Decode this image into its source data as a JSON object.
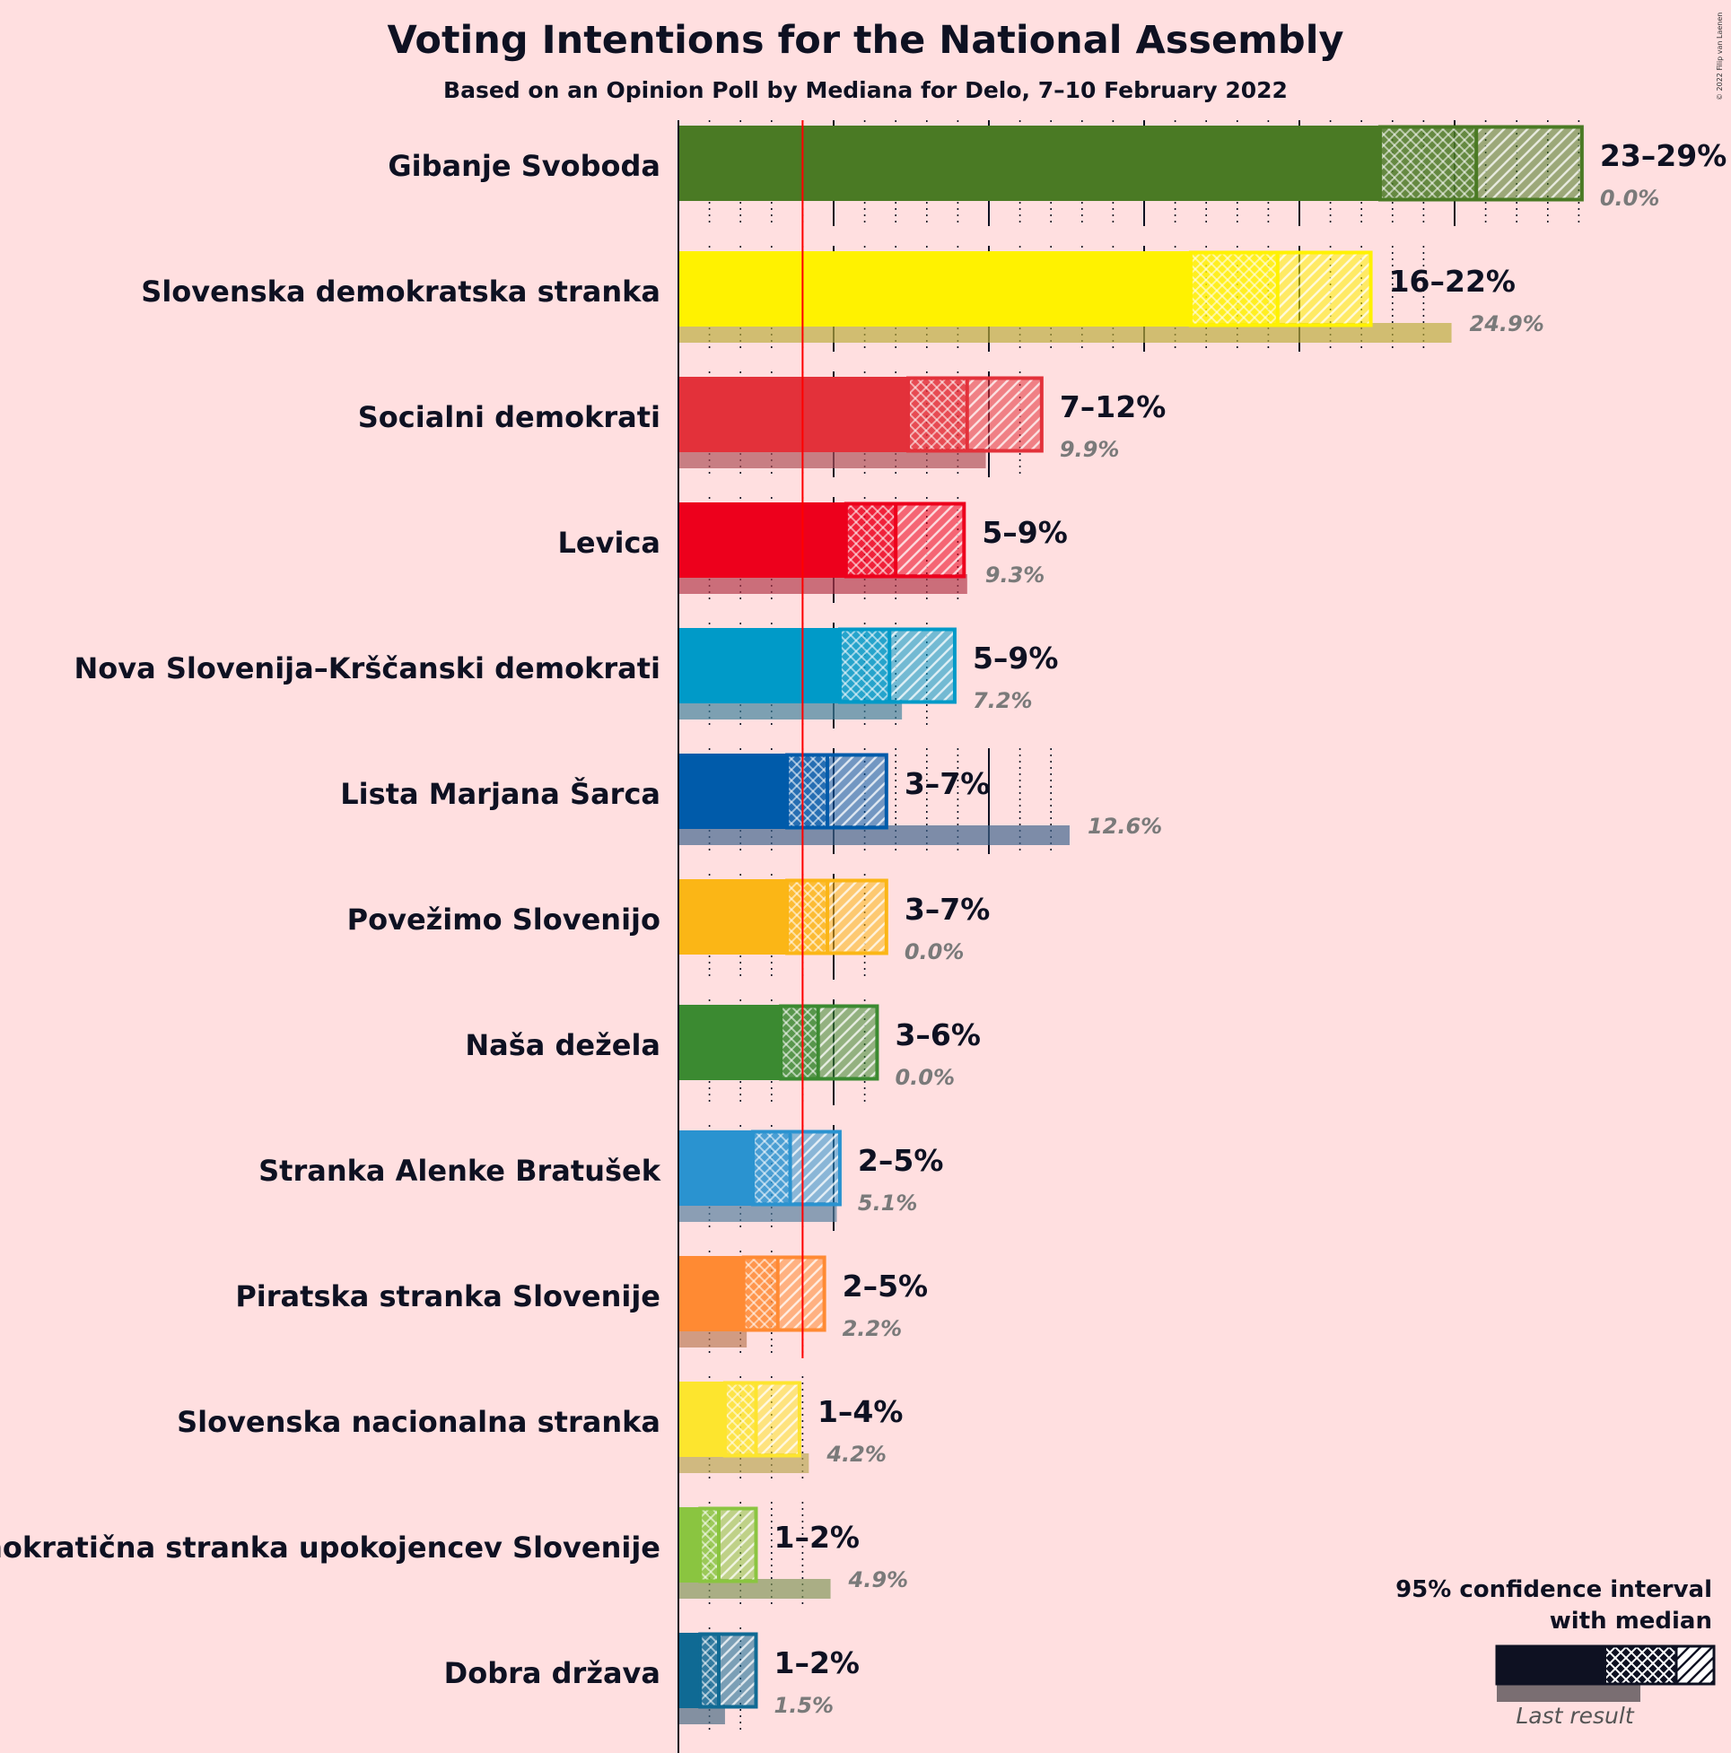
{
  "title": "Voting Intentions for the National Assembly",
  "subtitle": "Based on an Opinion Poll by Mediana for Delo, 7–10 February 2022",
  "copyright": "© 2022 Filip van Laenen",
  "legend": {
    "line1": "95% confidence interval",
    "line2": "with median",
    "last_result": "Last result"
  },
  "chart_data": {
    "type": "bar",
    "orientation": "horizontal",
    "title": "Voting Intentions for the National Assembly",
    "subtitle": "Based on an Opinion Poll by Mediana for Delo, 7–10 February 2022",
    "threshold": 4,
    "xlim": [
      0,
      30
    ],
    "categories": [
      "Gibanje Svoboda",
      "Slovenska demokratska stranka",
      "Socialni demokrati",
      "Levica",
      "Nova Slovenija–Krščanski demokrati",
      "Lista Marjana Šarca",
      "Povežimo Slovenijo",
      "Naša dežela",
      "Stranka Alenke Bratušek",
      "Piratska stranka Slovenije",
      "Slovenska nacionalna stranka",
      "Demokratična stranka upokojencev Slovenije",
      "Dobra država"
    ],
    "parties": [
      {
        "name": "Gibanje Svoboda",
        "ci_low": 22.6,
        "q_low": 25.7,
        "median": 25.7,
        "q_high": 25.7,
        "ci_high": 29.1,
        "range_label": "23–29%",
        "last": 0.0,
        "last_label": "0.0%",
        "color": "#4a7a24"
      },
      {
        "name": "Slovenska demokratska stranka",
        "ci_low": 16.5,
        "q_low": 16.5,
        "median": 19.3,
        "q_high": 19.3,
        "ci_high": 22.3,
        "range_label": "16–22%",
        "last": 24.9,
        "last_label": "24.9%",
        "color": "#fff200"
      },
      {
        "name": "Socialni demokrati",
        "ci_low": 7.4,
        "q_low": 7.4,
        "median": 9.3,
        "q_high": 9.3,
        "ci_high": 11.7,
        "range_label": "7–12%",
        "last": 9.9,
        "last_label": "9.9%",
        "color": "#e3313a"
      },
      {
        "name": "Levica",
        "ci_low": 5.4,
        "q_low": 5.4,
        "median": 7.0,
        "q_high": 7.0,
        "ci_high": 9.2,
        "range_label": "5–9%",
        "last": 9.3,
        "last_label": "9.3%",
        "color": "#ed001c"
      },
      {
        "name": "Nova Slovenija–Krščanski demokrati",
        "ci_low": 5.2,
        "q_low": 5.2,
        "median": 6.8,
        "q_high": 6.8,
        "ci_high": 8.9,
        "range_label": "5–9%",
        "last": 7.2,
        "last_label": "7.2%",
        "color": "#009ac8"
      },
      {
        "name": "Lista Marjana Šarca",
        "ci_low": 3.5,
        "q_low": 3.5,
        "median": 4.8,
        "q_high": 4.8,
        "ci_high": 6.7,
        "range_label": "3–7%",
        "last": 12.6,
        "last_label": "12.6%",
        "color": "#005baa"
      },
      {
        "name": "Povežimo Slovenijo",
        "ci_low": 3.5,
        "q_low": 3.5,
        "median": 4.8,
        "q_high": 4.8,
        "ci_high": 6.7,
        "range_label": "3–7%",
        "last": 0.0,
        "last_label": "0.0%",
        "color": "#fbb616"
      },
      {
        "name": "Naša dežela",
        "ci_low": 3.3,
        "q_low": 3.3,
        "median": 4.5,
        "q_high": 4.5,
        "ci_high": 6.4,
        "range_label": "3–6%",
        "last": 0.0,
        "last_label": "0.0%",
        "color": "#3b8a31"
      },
      {
        "name": "Stranka Alenke Bratušek",
        "ci_low": 2.4,
        "q_low": 2.4,
        "median": 3.6,
        "q_high": 3.6,
        "ci_high": 5.2,
        "range_label": "2–5%",
        "last": 5.1,
        "last_label": "5.1%",
        "color": "#2a93d0"
      },
      {
        "name": "Piratska stranka Slovenije",
        "ci_low": 2.1,
        "q_low": 2.1,
        "median": 3.2,
        "q_high": 3.2,
        "ci_high": 4.7,
        "range_label": "2–5%",
        "last": 2.2,
        "last_label": "2.2%",
        "color": "#ff8a33"
      },
      {
        "name": "Slovenska nacionalna stranka",
        "ci_low": 1.5,
        "q_low": 1.5,
        "median": 2.5,
        "q_high": 2.5,
        "ci_high": 3.9,
        "range_label": "1–4%",
        "last": 4.2,
        "last_label": "4.2%",
        "color": "#fde52e"
      },
      {
        "name": "Demokratična stranka upokojencev Slovenije",
        "ci_low": 0.7,
        "q_low": 0.7,
        "median": 1.3,
        "q_high": 1.3,
        "ci_high": 2.5,
        "range_label": "1–2%",
        "last": 4.9,
        "last_label": "4.9%",
        "color": "#8ac540"
      },
      {
        "name": "Dobra država",
        "ci_low": 0.7,
        "q_low": 0.7,
        "median": 1.3,
        "q_high": 1.3,
        "ci_high": 2.5,
        "range_label": "1–2%",
        "last": 1.5,
        "last_label": "1.5%",
        "color": "#0f6a94"
      }
    ],
    "legend_placement": "bottom-right"
  }
}
